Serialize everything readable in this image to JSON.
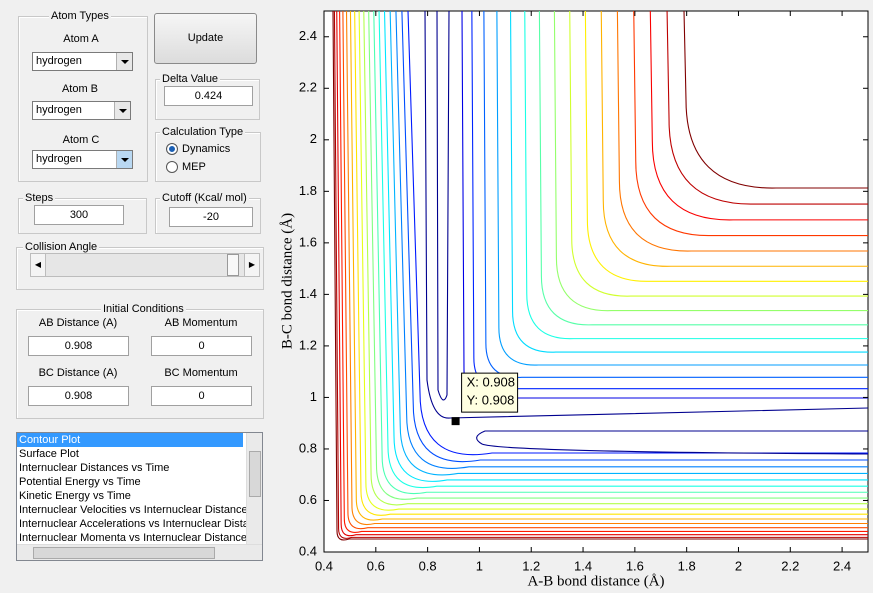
{
  "panel": {
    "atom_types": {
      "title": "Atom Types",
      "atom_a_label": "Atom A",
      "atom_a": "hydrogen",
      "atom_b_label": "Atom B",
      "atom_b": "hydrogen",
      "atom_c_label": "Atom C",
      "atom_c": "hydrogen"
    },
    "update_button": "Update",
    "delta": {
      "title": "Delta Value",
      "value": "0.424"
    },
    "calc_type": {
      "title": "Calculation Type",
      "options": [
        "Dynamics",
        "MEP"
      ]
    },
    "steps": {
      "title": "Steps",
      "value": "300"
    },
    "cutoff": {
      "title": "Cutoff (Kcal/ mol)",
      "value": "-20"
    },
    "collision_angle": {
      "title": "Collision Angle"
    },
    "initial": {
      "title": "Initial Conditions",
      "ab_distance_label": "AB Distance (A)",
      "ab_distance": "0.908",
      "ab_momentum_label": "AB Momentum",
      "ab_momentum": "0",
      "bc_distance_label": "BC Distance (A)",
      "bc_distance": "0.908",
      "bc_momentum_label": "BC Momentum",
      "bc_momentum": "0"
    },
    "plot_list": [
      "Contour Plot",
      "Surface Plot",
      "Internuclear Distances vs Time",
      "Potential Energy vs Time",
      "Kinetic Energy vs Time",
      "Internuclear Velocities vs Internuclear Distances",
      "Internuclear Accelerations vs Internuclear Distances",
      "Internuclear Momenta vs Internuclear Distances"
    ]
  },
  "chart_data": {
    "type": "contour",
    "xlabel": "A-B bond distance (Å)",
    "ylabel": "B-C bond distance (Å)",
    "xlim": [
      0.4,
      2.5
    ],
    "ylim": [
      0.4,
      2.5
    ],
    "xticks": [
      0.4,
      0.6,
      0.8,
      1,
      1.2,
      1.4,
      1.6,
      1.8,
      2,
      2.2,
      2.4
    ],
    "yticks": [
      0.4,
      0.6,
      0.8,
      1,
      1.2,
      1.4,
      1.6,
      1.8,
      2,
      2.2,
      2.4
    ],
    "point": {
      "x": 0.908,
      "y": 0.908,
      "tip": [
        "X: 0.908",
        "Y: 0.908"
      ]
    }
  }
}
